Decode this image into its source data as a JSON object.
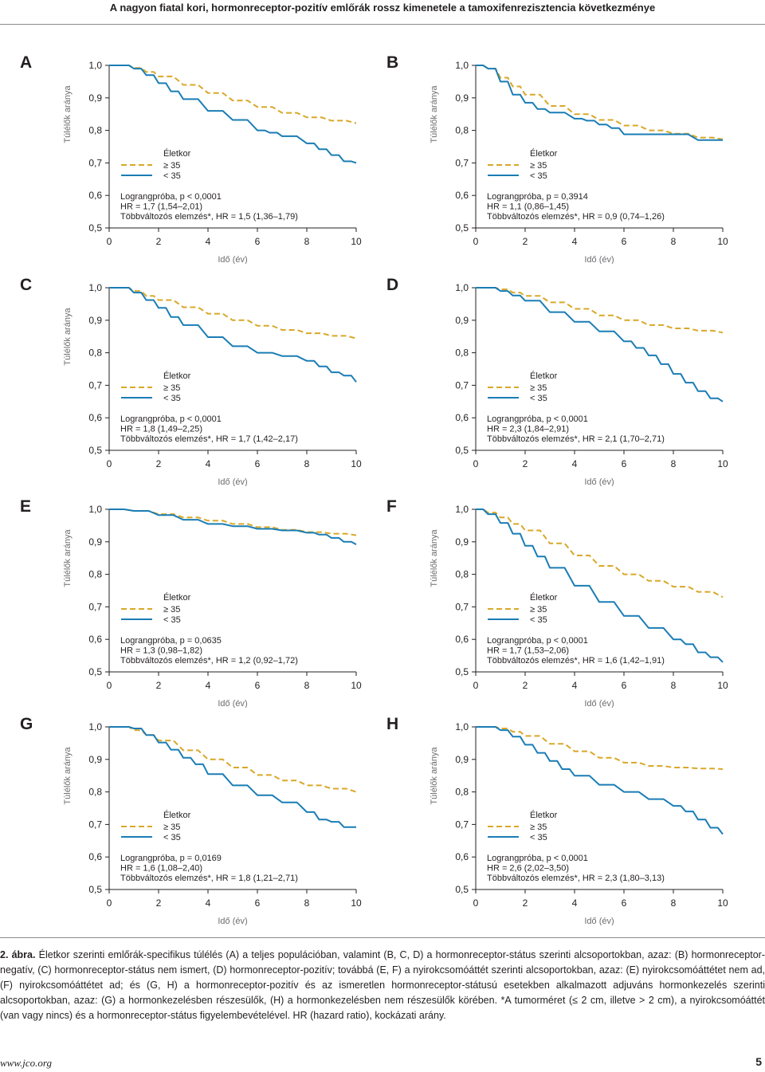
{
  "header": {
    "title": "A nagyon fiatal kori, hormonreceptor-pozitív emlőrák rossz kimenetele a tamoxifenrezisztencia következménye"
  },
  "common": {
    "ylabel": "Túlélők aránya",
    "xlabel": "Idő (év)",
    "legend_title": "Életkor",
    "legend_ge35": "≥ 35",
    "legend_lt35": "< 35",
    "x_ticks": [
      "0",
      "2",
      "4",
      "6",
      "8",
      "10"
    ],
    "y_ticks": [
      "1,0",
      "0,9",
      "0,8",
      "0,7",
      "0,6",
      "0,5"
    ],
    "colors": {
      "ge35": "#d9a828",
      "lt35": "#1a7db5"
    }
  },
  "chart_data": [
    {
      "type": "line",
      "panel": "A",
      "xlabel": "Idő (év)",
      "ylabel": "Túlélők aránya",
      "xlim": [
        0,
        10
      ],
      "ylim": [
        0.5,
        1.0
      ],
      "show_ylabel": true,
      "show_xlabel": true,
      "stats": [
        "Lograngpróba, p < 0,0001",
        "HR = 1,7 (1,54–2,01)",
        "Többváltozós elemzés*, HR = 1,5 (1,36–1,79)"
      ],
      "series": [
        {
          "name": "≥ 35",
          "x": [
            0,
            0.5,
            1,
            1.5,
            2,
            3,
            4,
            5,
            6,
            7,
            8,
            9,
            10
          ],
          "y": [
            1,
            1,
            0.992,
            0.98,
            0.966,
            0.94,
            0.915,
            0.892,
            0.872,
            0.854,
            0.84,
            0.83,
            0.822
          ]
        },
        {
          "name": "< 35",
          "x": [
            0,
            0.5,
            1,
            1.5,
            2,
            2.5,
            3,
            4,
            5,
            6,
            6.5,
            7,
            8,
            8.5,
            9,
            9.5,
            10
          ],
          "y": [
            1,
            1,
            0.99,
            0.97,
            0.945,
            0.92,
            0.896,
            0.86,
            0.832,
            0.8,
            0.793,
            0.782,
            0.76,
            0.742,
            0.724,
            0.705,
            0.7
          ]
        }
      ]
    },
    {
      "type": "line",
      "panel": "B",
      "xlabel": "Idő (év)",
      "ylabel": "Túlélők aránya",
      "xlim": [
        0,
        10
      ],
      "ylim": [
        0.5,
        1.0
      ],
      "show_ylabel": true,
      "show_xlabel": true,
      "stats": [
        "Lograngpróba, p = 0,3914",
        "HR = 1,1 (0,86–1,45)",
        "Többváltozós elemzés*, HR = 0,9 (0,74–1,26)"
      ],
      "series": [
        {
          "name": "≥ 35",
          "x": [
            0,
            0.5,
            1,
            1.5,
            2,
            3,
            4,
            5,
            6,
            7,
            8,
            9,
            10
          ],
          "y": [
            1,
            0.99,
            0.962,
            0.935,
            0.91,
            0.875,
            0.85,
            0.832,
            0.815,
            0.8,
            0.79,
            0.778,
            0.772
          ]
        },
        {
          "name": "< 35",
          "x": [
            0,
            0.5,
            1,
            1.5,
            2,
            2.5,
            3,
            4,
            4.5,
            5,
            5.5,
            6,
            7,
            8,
            9,
            9.5,
            10
          ],
          "y": [
            1,
            0.99,
            0.95,
            0.91,
            0.885,
            0.866,
            0.855,
            0.836,
            0.83,
            0.818,
            0.807,
            0.788,
            0.788,
            0.788,
            0.77,
            0.77,
            0.77
          ]
        }
      ]
    },
    {
      "type": "line",
      "panel": "C",
      "xlabel": "Idő (év)",
      "ylabel": "Túlélők aránya",
      "xlim": [
        0,
        10
      ],
      "ylim": [
        0.5,
        1.0
      ],
      "show_ylabel": true,
      "show_xlabel": true,
      "stats": [
        "Lograngpróba, p < 0,0001",
        "HR = 1,8 (1,49–2,25)",
        "Többváltozós elemzés*, HR = 1,7 (1,42–2,17)"
      ],
      "series": [
        {
          "name": "≥ 35",
          "x": [
            0,
            0.5,
            1,
            1.5,
            2,
            3,
            4,
            5,
            6,
            7,
            8,
            9,
            10
          ],
          "y": [
            1,
            1,
            0.99,
            0.975,
            0.962,
            0.94,
            0.92,
            0.9,
            0.883,
            0.87,
            0.86,
            0.852,
            0.844
          ]
        },
        {
          "name": "< 35",
          "x": [
            0,
            0.5,
            1,
            1.5,
            2,
            2.5,
            3,
            4,
            5,
            6,
            7,
            8,
            8.5,
            9,
            9.5,
            10
          ],
          "y": [
            1,
            1,
            0.985,
            0.962,
            0.938,
            0.91,
            0.885,
            0.848,
            0.82,
            0.8,
            0.79,
            0.775,
            0.758,
            0.74,
            0.73,
            0.71
          ]
        }
      ]
    },
    {
      "type": "line",
      "panel": "D",
      "xlabel": "Idő (év)",
      "ylabel": "",
      "xlim": [
        0,
        10
      ],
      "ylim": [
        0.5,
        1.0
      ],
      "show_ylabel": false,
      "show_xlabel": true,
      "stats": [
        "Lograngpróba, p < 0,0001",
        "HR = 2,3 (1,84–2,91)",
        "Többváltozós elemzés*, HR = 2,1 (1,70–2,71)"
      ],
      "series": [
        {
          "name": "≥ 35",
          "x": [
            0,
            0.5,
            1,
            1.5,
            2,
            3,
            4,
            5,
            6,
            7,
            8,
            9,
            10
          ],
          "y": [
            1,
            1,
            0.995,
            0.985,
            0.975,
            0.955,
            0.935,
            0.915,
            0.9,
            0.885,
            0.875,
            0.868,
            0.862
          ]
        },
        {
          "name": "< 35",
          "x": [
            0,
            0.5,
            1,
            1.5,
            2,
            3,
            4,
            5,
            6,
            6.5,
            7,
            7.5,
            8,
            8.5,
            9,
            9.5,
            10
          ],
          "y": [
            1,
            1,
            0.99,
            0.976,
            0.96,
            0.925,
            0.895,
            0.866,
            0.835,
            0.815,
            0.792,
            0.765,
            0.735,
            0.708,
            0.682,
            0.66,
            0.65
          ]
        }
      ]
    },
    {
      "type": "line",
      "panel": "E",
      "xlabel": "Idő (év)",
      "ylabel": "Túlélők aránya",
      "xlim": [
        0,
        10
      ],
      "ylim": [
        0.5,
        1.0
      ],
      "show_ylabel": true,
      "show_xlabel": true,
      "stats": [
        "Lograngpróba, p = 0,0635",
        "HR = 1,3 (0,98–1,82)",
        "Többváltozós elemzés*, HR = 1,2 (0,92–1,72)"
      ],
      "series": [
        {
          "name": "≥ 35",
          "x": [
            0,
            1,
            2,
            3,
            4,
            5,
            6,
            7,
            8,
            9,
            10
          ],
          "y": [
            1,
            0.995,
            0.985,
            0.975,
            0.965,
            0.955,
            0.945,
            0.937,
            0.93,
            0.925,
            0.92
          ]
        },
        {
          "name": "< 35",
          "x": [
            0,
            1,
            2,
            3,
            4,
            5,
            6,
            7,
            8,
            8.5,
            9,
            9.5,
            10
          ],
          "y": [
            1,
            0.995,
            0.982,
            0.968,
            0.955,
            0.948,
            0.94,
            0.935,
            0.928,
            0.922,
            0.912,
            0.9,
            0.892
          ]
        }
      ]
    },
    {
      "type": "line",
      "panel": "F",
      "xlabel": "Idő (év)",
      "ylabel": "Túlélők aránya",
      "xlim": [
        0,
        10
      ],
      "ylim": [
        0.5,
        1.0
      ],
      "show_ylabel": true,
      "show_xlabel": true,
      "stats": [
        "Lograngpróba, p < 0,0001",
        "HR = 1,7 (1,53–2,06)",
        "Többváltozós elemzés*, HR = 1,6 (1,42–1,91)"
      ],
      "series": [
        {
          "name": "≥ 35",
          "x": [
            0,
            0.5,
            1,
            1.5,
            2,
            3,
            4,
            5,
            6,
            7,
            8,
            9,
            10
          ],
          "y": [
            1,
            0.99,
            0.975,
            0.955,
            0.935,
            0.895,
            0.858,
            0.826,
            0.8,
            0.78,
            0.762,
            0.746,
            0.73
          ]
        },
        {
          "name": "< 35",
          "x": [
            0,
            0.5,
            1,
            1.5,
            2,
            2.5,
            3,
            4,
            5,
            6,
            7,
            8,
            8.5,
            9,
            9.5,
            10
          ],
          "y": [
            1,
            0.985,
            0.958,
            0.925,
            0.888,
            0.855,
            0.82,
            0.765,
            0.715,
            0.672,
            0.635,
            0.6,
            0.585,
            0.56,
            0.545,
            0.53
          ]
        }
      ]
    },
    {
      "type": "line",
      "panel": "G",
      "xlabel": "Idő (év)",
      "ylabel": "Túlélők aránya",
      "xlim": [
        0,
        10
      ],
      "ylim": [
        0.5,
        1.0
      ],
      "show_ylabel": true,
      "show_xlabel": true,
      "stats": [
        "Lograngpróba, p = 0,0169",
        "HR = 1,6 (1,08–2,40)",
        "Többváltozós elemzés*, HR = 1,8 (1,21–2,71)"
      ],
      "series": [
        {
          "name": "≥ 35",
          "x": [
            0,
            0.5,
            1,
            1.5,
            2,
            3,
            4,
            5,
            6,
            7,
            8,
            9,
            10
          ],
          "y": [
            1,
            1,
            0.99,
            0.975,
            0.958,
            0.928,
            0.9,
            0.875,
            0.852,
            0.835,
            0.82,
            0.81,
            0.8
          ]
        },
        {
          "name": "< 35",
          "x": [
            0,
            0.5,
            1,
            1.5,
            2,
            2.5,
            3,
            3.5,
            4,
            5,
            6,
            7,
            8,
            8.5,
            9,
            9.5,
            10
          ],
          "y": [
            1,
            1,
            0.995,
            0.975,
            0.952,
            0.93,
            0.905,
            0.885,
            0.855,
            0.82,
            0.79,
            0.768,
            0.738,
            0.715,
            0.708,
            0.692,
            0.692
          ]
        }
      ]
    },
    {
      "type": "line",
      "panel": "H",
      "xlabel": "Idő (év)",
      "ylabel": "Túlélők aránya",
      "xlim": [
        0,
        10
      ],
      "ylim": [
        0.5,
        1.0
      ],
      "show_ylabel": true,
      "show_xlabel": true,
      "stats": [
        "Lograngpróba, p < 0,0001",
        "HR = 2,6 (2,02–3,50)",
        "Többváltozós elemzés*, HR = 2,3 (1,80–3,13)"
      ],
      "series": [
        {
          "name": "≥ 35",
          "x": [
            0,
            0.5,
            1,
            1.5,
            2,
            3,
            4,
            5,
            6,
            7,
            8,
            9,
            10
          ],
          "y": [
            1,
            1,
            0.995,
            0.985,
            0.972,
            0.948,
            0.925,
            0.905,
            0.89,
            0.88,
            0.875,
            0.872,
            0.87
          ]
        },
        {
          "name": "< 35",
          "x": [
            0,
            0.5,
            1,
            1.5,
            2,
            2.5,
            3,
            3.5,
            4,
            5,
            6,
            7,
            8,
            8.5,
            9,
            9.5,
            10
          ],
          "y": [
            1,
            1,
            0.99,
            0.97,
            0.945,
            0.92,
            0.895,
            0.87,
            0.85,
            0.822,
            0.8,
            0.778,
            0.757,
            0.74,
            0.715,
            0.69,
            0.67
          ]
        }
      ]
    }
  ],
  "caption": {
    "label": "2. ábra.",
    "text": "Életkor szerinti emlőrák-specifikus túlélés (A) a teljes populációban, valamint (B, C, D) a hormonreceptor-státus szerinti alcsoportokban, azaz: (B) hormonreceptor-negatív, (C) hormonreceptor-státus nem ismert, (D) hormonreceptor-pozitív; továbbá (E, F) a nyirokcsomóáttét szerinti alcsoportokban, azaz: (E) nyirokcsomóáttétet nem ad, (F) nyirokcsomóáttétet ad; és (G, H) a hormonreceptor-pozitív és az ismeretlen hormonreceptor-státusú esetekben alkalmazott adjuváns hormonkezelés szerinti alcsoportokban, azaz: (G) a hormonkezelésben részesülők, (H) a hormonkezelésben nem részesülők körében. *A tumorméret (≤ 2 cm, illetve > 2 cm), a nyirokcsomóáttét (van vagy nincs) és a hormonreceptor-státus figyelembevételével. HR (hazard ratio), kockázati arány."
  },
  "footer": {
    "url": "www.jco.org",
    "page": "5"
  }
}
